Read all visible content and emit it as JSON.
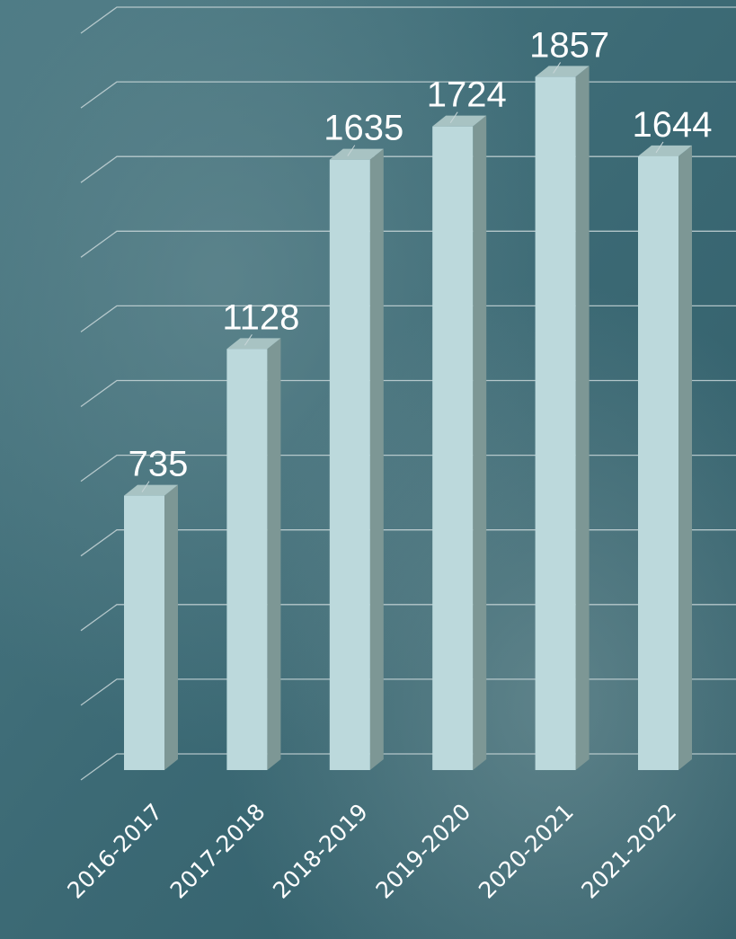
{
  "chart_data": {
    "type": "bar3d",
    "categories": [
      "2016-2017",
      "2017-2018",
      "2018-2019",
      "2019-2020",
      "2020-2021",
      "2021-2022"
    ],
    "values": [
      735,
      1128,
      1635,
      1724,
      1857,
      1644
    ],
    "color": "#bcd9dc",
    "ylim": [
      0,
      2000
    ],
    "yticks": [
      0,
      200,
      400,
      600,
      800,
      1000,
      1200,
      1400,
      1600,
      1800,
      2000
    ],
    "grid": true
  }
}
